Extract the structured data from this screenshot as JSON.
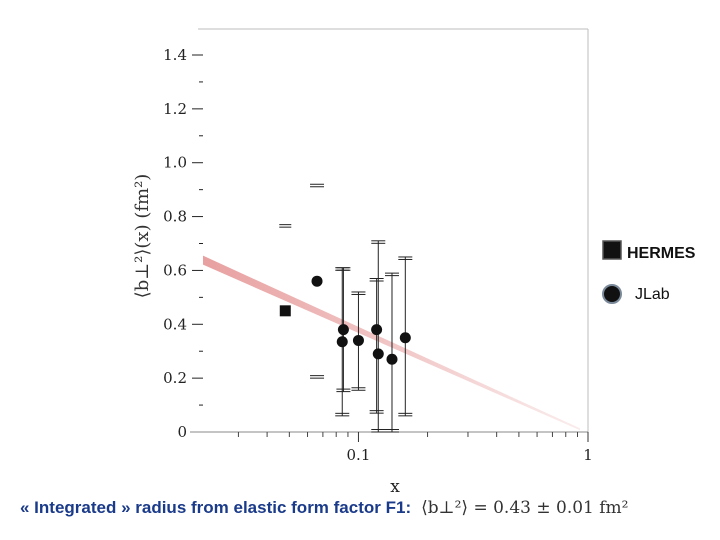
{
  "chart_data": {
    "type": "scatter",
    "title": "",
    "xlabel": "x",
    "ylabel": "⟨b⊥²⟩(x)   (fm²)",
    "xscale": "log",
    "xlim": [
      0.02,
      1
    ],
    "ylim": [
      0,
      1.5
    ],
    "x_ticks": [
      {
        "value": 0.1,
        "label": "0.1"
      },
      {
        "value": 1,
        "label": "1"
      }
    ],
    "y_ticks": [
      {
        "value": 0,
        "label": "0"
      },
      {
        "value": 0.2,
        "label": "0.2"
      },
      {
        "value": 0.4,
        "label": "0.4"
      },
      {
        "value": 0.6,
        "label": "0.6"
      },
      {
        "value": 0.8,
        "label": "0.8"
      },
      {
        "value": 1.0,
        "label": "1.0"
      },
      {
        "value": 1.2,
        "label": "1.2"
      },
      {
        "value": 1.4,
        "label": "1.4"
      }
    ],
    "grid": false,
    "legend": "right",
    "series": [
      {
        "name": "HERMES",
        "marker": "square",
        "color": "#111111",
        "points": [
          {
            "x": 0.048,
            "y": 0.45
          }
        ],
        "bands": [
          {
            "x": 0.048,
            "hi": 0.77,
            "lo": null
          }
        ]
      },
      {
        "name": "JLab",
        "marker": "circle",
        "color": "#111111",
        "points": [
          {
            "x": 0.066,
            "y": 0.56,
            "hi": 0.92,
            "lo": 0.2
          },
          {
            "x": 0.085,
            "y": 0.335,
            "hi": 0.61,
            "lo": 0.06
          },
          {
            "x": 0.086,
            "y": 0.38,
            "hi": 0.61,
            "lo": 0.15
          },
          {
            "x": 0.1,
            "y": 0.34,
            "hi": 0.52,
            "lo": 0.155
          },
          {
            "x": 0.12,
            "y": 0.38,
            "hi": 0.57,
            "lo": 0.07
          },
          {
            "x": 0.122,
            "y": 0.29,
            "hi": 0.71,
            "lo": 0.0
          },
          {
            "x": 0.14,
            "y": 0.27,
            "hi": 0.59,
            "lo": 0.0
          },
          {
            "x": 0.16,
            "y": 0.35,
            "hi": 0.65,
            "lo": 0.06
          }
        ]
      }
    ],
    "fit_line": {
      "color": "#e8a0a0",
      "points": [
        {
          "x": 0.02,
          "y": 0.64
        },
        {
          "x": 1,
          "y": 0.0
        }
      ]
    }
  },
  "legend": {
    "hermes_label": "HERMES",
    "jlab_label": "JLab"
  },
  "caption": {
    "text": "« Integrated » radius from elastic form factor F1:",
    "formula": "⟨b⊥²⟩ = 0.43 ± 0.01 fm²"
  }
}
